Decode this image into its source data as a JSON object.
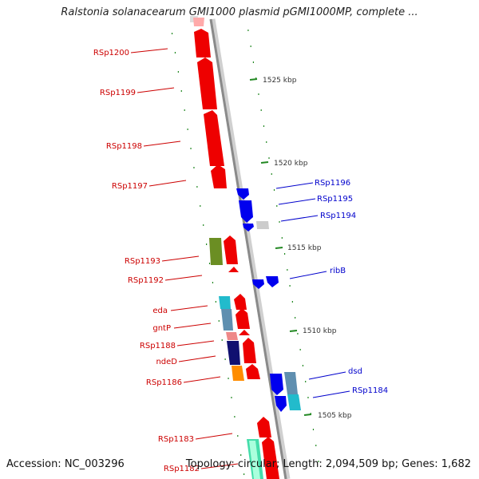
{
  "title": "Ralstonia solanacearum GMI1000 plasmid pGMI1000MP, complete ...",
  "footer": {
    "accession": "Accession: NC_003296",
    "topology": "Topology: circular; Length: 2,094,509 bp; Genes: 1,682"
  },
  "colors": {
    "backbone": "#8a8a8a",
    "tick": "#228822",
    "left_label": "#cc0000",
    "right_label": "#0000cc"
  },
  "ticks": [
    "1525 kbp",
    "1520 kbp",
    "1515 kbp",
    "1510 kbp",
    "1505 kbp"
  ],
  "left_genes": [
    "RSp1200",
    "RSp1199",
    "RSp1198",
    "RSp1197",
    "RSp1193",
    "RSp1192",
    "eda",
    "gntP",
    "RSp1188",
    "ndeD",
    "RSp1186",
    "RSp1183",
    "RSp1182"
  ],
  "right_genes": [
    "RSp1196",
    "RSp1195",
    "RSp1194",
    "ribB",
    "dsd",
    "RSp1184"
  ]
}
